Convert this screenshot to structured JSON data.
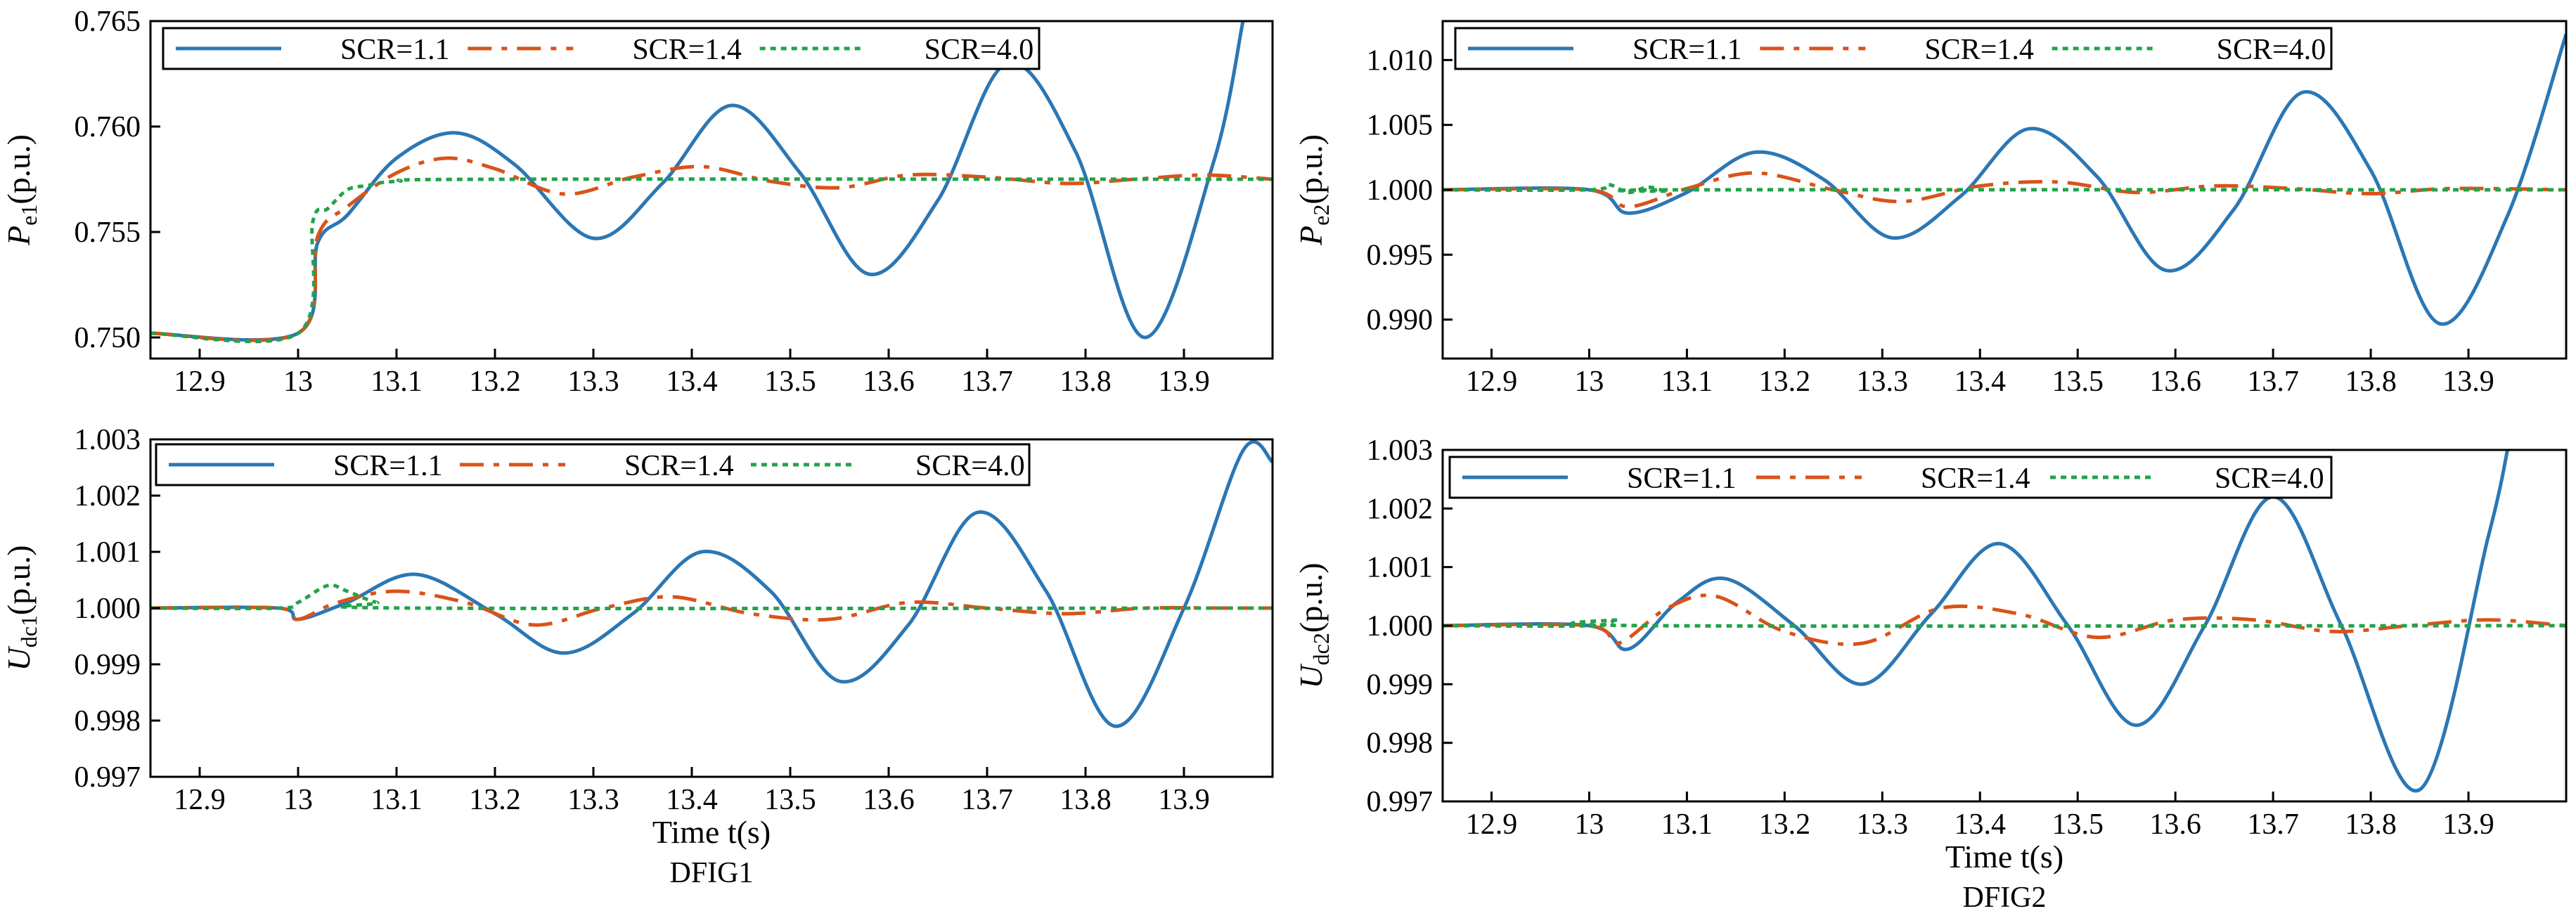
{
  "figure": {
    "captions": [
      "DFIG1",
      "DFIG2"
    ]
  },
  "colors": {
    "SCR=1.1": "#2b77b5",
    "SCR=1.4": "#d95319",
    "SCR=4.0": "#22a34a"
  },
  "chart_data": [
    {
      "type": "line",
      "id": "pe1",
      "ylabel_main": "P",
      "ylabel_sub": "e1",
      "ylabel_unit": "(p.u.)",
      "xlabel": "",
      "caption": "",
      "xlim": [
        12.85,
        13.99
      ],
      "ylim": [
        0.749,
        0.765
      ],
      "x_ticks": [
        12.9,
        13.0,
        13.1,
        13.2,
        13.3,
        13.4,
        13.5,
        13.6,
        13.7,
        13.8,
        13.9
      ],
      "x_tick_labels": [
        "12.9",
        "13",
        "13.1",
        "13.2",
        "13.3",
        "13.4",
        "13.5",
        "13.6",
        "13.7",
        "13.8",
        "13.9"
      ],
      "y_ticks": [
        0.75,
        0.755,
        0.76,
        0.765
      ],
      "y_tick_labels": [
        "0.750",
        "0.755",
        "0.760",
        "0.765"
      ],
      "legend": [
        "SCR=1.1",
        "SCR=1.4",
        "SCR=4.0"
      ],
      "legend_position": "top",
      "series": [
        {
          "name": "SCR=1.1",
          "style": "solid",
          "x": [
            12.85,
            13.0,
            13.02,
            13.05,
            13.1,
            13.16,
            13.22,
            13.3,
            13.37,
            13.44,
            13.51,
            13.58,
            13.65,
            13.72,
            13.79,
            13.86,
            13.93,
            13.96
          ],
          "y": [
            0.7502,
            0.7502,
            0.7545,
            0.7558,
            0.7585,
            0.7597,
            0.7582,
            0.7547,
            0.7573,
            0.761,
            0.7578,
            0.753,
            0.7565,
            0.763,
            0.7588,
            0.75,
            0.7583,
            0.765
          ]
        },
        {
          "name": "SCR=1.4",
          "style": "dashdot",
          "x": [
            12.85,
            13.0,
            13.02,
            13.05,
            13.1,
            13.15,
            13.2,
            13.27,
            13.34,
            13.41,
            13.48,
            13.55,
            13.62,
            13.7,
            13.78,
            13.85,
            13.92,
            13.99
          ],
          "y": [
            0.7502,
            0.7502,
            0.7548,
            0.7562,
            0.7578,
            0.7585,
            0.758,
            0.7568,
            0.7576,
            0.7581,
            0.7574,
            0.7571,
            0.7577,
            0.7576,
            0.7573,
            0.7575,
            0.7577,
            0.7575
          ]
        },
        {
          "name": "SCR=4.0",
          "style": "dotted",
          "x": [
            12.85,
            13.0,
            13.015,
            13.03,
            13.05,
            13.07,
            13.1,
            13.2,
            13.99
          ],
          "y": [
            0.7502,
            0.7502,
            0.7555,
            0.7561,
            0.757,
            0.7572,
            0.7574,
            0.7575,
            0.7575
          ]
        }
      ]
    },
    {
      "type": "line",
      "id": "pe2",
      "ylabel_main": "P",
      "ylabel_sub": "e2",
      "ylabel_unit": "(p.u.)",
      "xlabel": "",
      "caption": "",
      "xlim": [
        12.85,
        14.0
      ],
      "ylim": [
        0.987,
        1.013
      ],
      "x_ticks": [
        12.9,
        13.0,
        13.1,
        13.2,
        13.3,
        13.4,
        13.5,
        13.6,
        13.7,
        13.8,
        13.9
      ],
      "x_tick_labels": [
        "12.9",
        "13",
        "13.1",
        "13.2",
        "13.3",
        "13.4",
        "13.5",
        "13.6",
        "13.7",
        "13.8",
        "13.9"
      ],
      "y_ticks": [
        0.99,
        0.995,
        1.0,
        1.005,
        1.01
      ],
      "y_tick_labels": [
        "0.990",
        "0.995",
        "1.000",
        "1.005",
        "1.010"
      ],
      "legend": [
        "SCR=1.1",
        "SCR=1.4",
        "SCR=4.0"
      ],
      "legend_position": "top",
      "series": [
        {
          "name": "SCR=1.1",
          "style": "solid",
          "x": [
            12.85,
            13.0,
            13.04,
            13.1,
            13.17,
            13.24,
            13.31,
            13.38,
            13.45,
            13.52,
            13.59,
            13.66,
            13.73,
            13.8,
            13.87,
            13.94,
            14.0
          ],
          "y": [
            1.0,
            1.0,
            0.9982,
            0.9998,
            1.0029,
            1.0008,
            0.9963,
            0.9995,
            1.0047,
            1.001,
            0.9938,
            0.9985,
            1.0075,
            1.0015,
            0.9897,
            0.998,
            1.012
          ]
        },
        {
          "name": "SCR=1.4",
          "style": "dashdot",
          "x": [
            12.85,
            13.0,
            13.04,
            13.1,
            13.17,
            13.25,
            13.32,
            13.4,
            13.48,
            13.56,
            13.64,
            13.72,
            13.8,
            13.88,
            14.0
          ],
          "y": [
            1.0,
            1.0,
            0.9987,
            1.0001,
            1.0013,
            1.0,
            0.9991,
            1.0003,
            1.0006,
            0.9998,
            1.0003,
            1.0001,
            0.9997,
            1.0001,
            1.0
          ]
        },
        {
          "name": "SCR=4.0",
          "style": "dotted",
          "x": [
            12.85,
            13.0,
            13.02,
            13.04,
            13.06,
            13.08,
            13.1,
            14.0
          ],
          "y": [
            1.0,
            1.0,
            1.0004,
            0.9998,
            1.0002,
            0.9999,
            1.0,
            1.0
          ]
        }
      ]
    },
    {
      "type": "line",
      "id": "udc1",
      "ylabel_main": "U",
      "ylabel_sub": "dc1",
      "ylabel_unit": "(p.u.)",
      "xlabel": "Time t(s)",
      "caption": "DFIG1",
      "xlim": [
        12.85,
        13.99
      ],
      "ylim": [
        0.997,
        1.003
      ],
      "x_ticks": [
        12.9,
        13.0,
        13.1,
        13.2,
        13.3,
        13.4,
        13.5,
        13.6,
        13.7,
        13.8,
        13.9
      ],
      "x_tick_labels": [
        "12.9",
        "13",
        "13.1",
        "13.2",
        "13.3",
        "13.4",
        "13.5",
        "13.6",
        "13.7",
        "13.8",
        "13.9"
      ],
      "y_ticks": [
        0.997,
        0.998,
        0.999,
        1.0,
        1.001,
        1.002,
        1.003
      ],
      "y_tick_labels": [
        "0.997",
        "0.998",
        "0.999",
        "1.000",
        "1.001",
        "1.002",
        "1.003"
      ],
      "legend": [
        "SCR=1.1",
        "SCR=1.4",
        "SCR=4.0"
      ],
      "legend_position": "top",
      "series": [
        {
          "name": "SCR=1.1",
          "style": "solid",
          "x": [
            12.85,
            12.98,
            13.0,
            13.05,
            13.12,
            13.2,
            13.27,
            13.34,
            13.41,
            13.48,
            13.55,
            13.62,
            13.69,
            13.76,
            13.83,
            13.9,
            13.96,
            13.99
          ],
          "y": [
            1.0,
            1.0,
            0.9998,
            1.0001,
            1.0006,
            0.9999,
            0.9992,
            0.9999,
            1.001,
            1.0003,
            0.9987,
            0.9997,
            1.0017,
            1.0003,
            0.9979,
            1.0,
            1.0028,
            1.0026
          ]
        },
        {
          "name": "SCR=1.4",
          "style": "dashdot",
          "x": [
            12.85,
            12.98,
            13.0,
            13.04,
            13.1,
            13.17,
            13.24,
            13.31,
            13.38,
            13.46,
            13.54,
            13.62,
            13.7,
            13.78,
            13.86,
            13.94,
            13.99
          ],
          "y": [
            1.0,
            1.0,
            0.9998,
            1.0001,
            1.0003,
            1.0001,
            0.9997,
            1.0,
            1.0002,
            0.9999,
            0.9998,
            1.0001,
            1.0,
            0.9999,
            1.0,
            1.0,
            1.0
          ]
        },
        {
          "name": "SCR=4.0",
          "style": "dotted",
          "x": [
            12.85,
            12.98,
            13.0,
            13.03,
            13.05,
            13.08,
            13.12,
            13.99
          ],
          "y": [
            1.0,
            1.0,
            1.0001,
            1.0004,
            1.0003,
            1.0001,
            1.0,
            1.0
          ]
        }
      ]
    },
    {
      "type": "line",
      "id": "udc2",
      "ylabel_main": "U",
      "ylabel_sub": "dc2",
      "ylabel_unit": "(p.u.)",
      "xlabel": "Time t(s)",
      "caption": "DFIG2",
      "xlim": [
        12.85,
        14.0
      ],
      "ylim": [
        0.997,
        1.003
      ],
      "x_ticks": [
        12.9,
        13.0,
        13.1,
        13.2,
        13.3,
        13.4,
        13.5,
        13.6,
        13.7,
        13.8,
        13.9
      ],
      "x_tick_labels": [
        "12.9",
        "13",
        "13.1",
        "13.2",
        "13.3",
        "13.4",
        "13.5",
        "13.6",
        "13.7",
        "13.8",
        "13.9"
      ],
      "y_ticks": [
        0.997,
        0.998,
        0.999,
        1.0,
        1.001,
        1.002,
        1.003
      ],
      "y_tick_labels": [
        "0.997",
        "0.998",
        "0.999",
        "1.000",
        "1.001",
        "1.002",
        "1.003"
      ],
      "legend": [
        "SCR=1.1",
        "SCR=1.4",
        "SCR=4.0"
      ],
      "legend_position": "top",
      "series": [
        {
          "name": "SCR=1.1",
          "style": "solid",
          "x": [
            12.85,
            13.0,
            13.04,
            13.09,
            13.14,
            13.21,
            13.28,
            13.35,
            13.42,
            13.49,
            13.56,
            13.63,
            13.7,
            13.77,
            13.85,
            13.92,
            13.94
          ],
          "y": [
            1.0,
            1.0,
            0.9996,
            1.0004,
            1.0008,
            1.0,
            0.999,
            1.0002,
            1.0014,
            1.0,
            0.9983,
            1.0,
            1.0022,
            1.0,
            0.9972,
            1.0015,
            1.003
          ]
        },
        {
          "name": "SCR=1.4",
          "style": "dashdot",
          "x": [
            12.85,
            13.0,
            13.03,
            13.08,
            13.13,
            13.2,
            13.28,
            13.36,
            13.44,
            13.52,
            13.6,
            13.68,
            13.76,
            13.84,
            13.92,
            14.0
          ],
          "y": [
            1.0,
            1.0,
            0.9997,
            1.0003,
            1.0005,
            0.9999,
            0.9997,
            1.0003,
            1.0002,
            0.9998,
            1.0001,
            1.0001,
            0.9999,
            1.0,
            1.0001,
            1.0
          ]
        },
        {
          "name": "SCR=4.0",
          "style": "dotted",
          "x": [
            12.85,
            13.0,
            13.03,
            13.06,
            14.0
          ],
          "y": [
            1.0,
            1.0,
            1.0001,
            1.0,
            1.0
          ]
        }
      ]
    }
  ]
}
